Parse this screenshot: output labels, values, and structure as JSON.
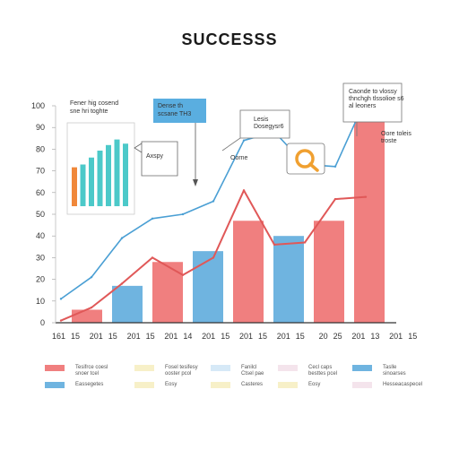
{
  "title": "SUCCESSS",
  "chart_data": {
    "type": "bar",
    "title": "SUCCESSS",
    "xlabel": "",
    "ylabel": "",
    "ylim": [
      0,
      100
    ],
    "y_ticks": [
      "0",
      "10",
      "20",
      "30",
      "40",
      "50",
      "60",
      "70",
      "80",
      "90",
      "100"
    ],
    "x_tick_labels": [
      "161",
      "15",
      "201",
      "15",
      "201",
      "15",
      "201",
      "14",
      "201",
      "15",
      "201",
      "15",
      "201",
      "15",
      "20",
      "25",
      "201",
      "13",
      "201",
      "15"
    ],
    "grid": false,
    "bars": [
      {
        "x": 2,
        "value": 6,
        "color": "#f07f7f"
      },
      {
        "x": 3,
        "value": 17,
        "color": "#6fb4e0"
      },
      {
        "x": 4,
        "value": 28,
        "color": "#f07f7f"
      },
      {
        "x": 5,
        "value": 33,
        "color": "#6fb4e0"
      },
      {
        "x": 6,
        "value": 47,
        "color": "#f07f7f"
      },
      {
        "x": 7,
        "value": 40,
        "color": "#6fb4e0"
      },
      {
        "x": 8,
        "value": 47,
        "color": "#f07f7f"
      },
      {
        "x": 9,
        "value": 97,
        "color": "#f07f7f"
      }
    ],
    "series": [
      {
        "color": "#4a9fd4",
        "x": [
          0,
          1,
          2,
          3,
          4,
          5,
          6,
          7,
          8,
          9,
          10,
          11
        ],
        "values": [
          11,
          21,
          39,
          48,
          50,
          56,
          84,
          88,
          73,
          72,
          103,
          100
        ]
      },
      {
        "color": "#e05858",
        "x": [
          0,
          1,
          2,
          3,
          4,
          5,
          6,
          7,
          8,
          9,
          10
        ],
        "values": [
          1,
          7,
          18,
          30,
          22,
          30,
          61,
          36,
          37,
          57,
          58
        ]
      }
    ],
    "inset": {
      "values": [
        28,
        30,
        35,
        40,
        44,
        48,
        45
      ],
      "colors": [
        "#f0883a",
        "#4cc9c9",
        "#4cc9c9",
        "#4cc9c9",
        "#4cc9c9",
        "#4cc9c9",
        "#4cc9c9"
      ],
      "label_left": "Fener hig cosend\nsne hri toghte",
      "label_right": "Axspy"
    },
    "annotations": {
      "box_blue": "Dense th\nscsane TH3",
      "box_a": "Lesis\nDosegysr6",
      "box_b": "Oorne",
      "box_c": "Caonde to vlossy\nthnchgh tlssolioe s6\nal leoners",
      "box_d": "Oore toleis\ntroste"
    },
    "legend": [
      {
        "color": "#f07f7f",
        "text": "Tesifrce coesl\nsnoer tcel"
      },
      {
        "color": "#f7f0c8",
        "text": "Fosel tesifesy\nooster pcol"
      },
      {
        "color": "#d6e9f7",
        "text": "Fanilcl\nCtsel pae"
      },
      {
        "color": "#f4e4ec",
        "text": "Cecl caps\nbesttes pcel"
      },
      {
        "color": "#6fb4e0",
        "text": "Taslle\nsinoarses"
      },
      {
        "color": "#6fb4e0",
        "text": "Eassegetes"
      },
      {
        "color": "#f7f0c8",
        "text": "Eosy"
      },
      {
        "color": "#f7f0c8",
        "text": "Casteres"
      },
      {
        "color": "#f7f0c8",
        "text": "Eosy"
      },
      {
        "color": "#f4e4ec",
        "text": "Hesseacaspecel"
      }
    ]
  }
}
